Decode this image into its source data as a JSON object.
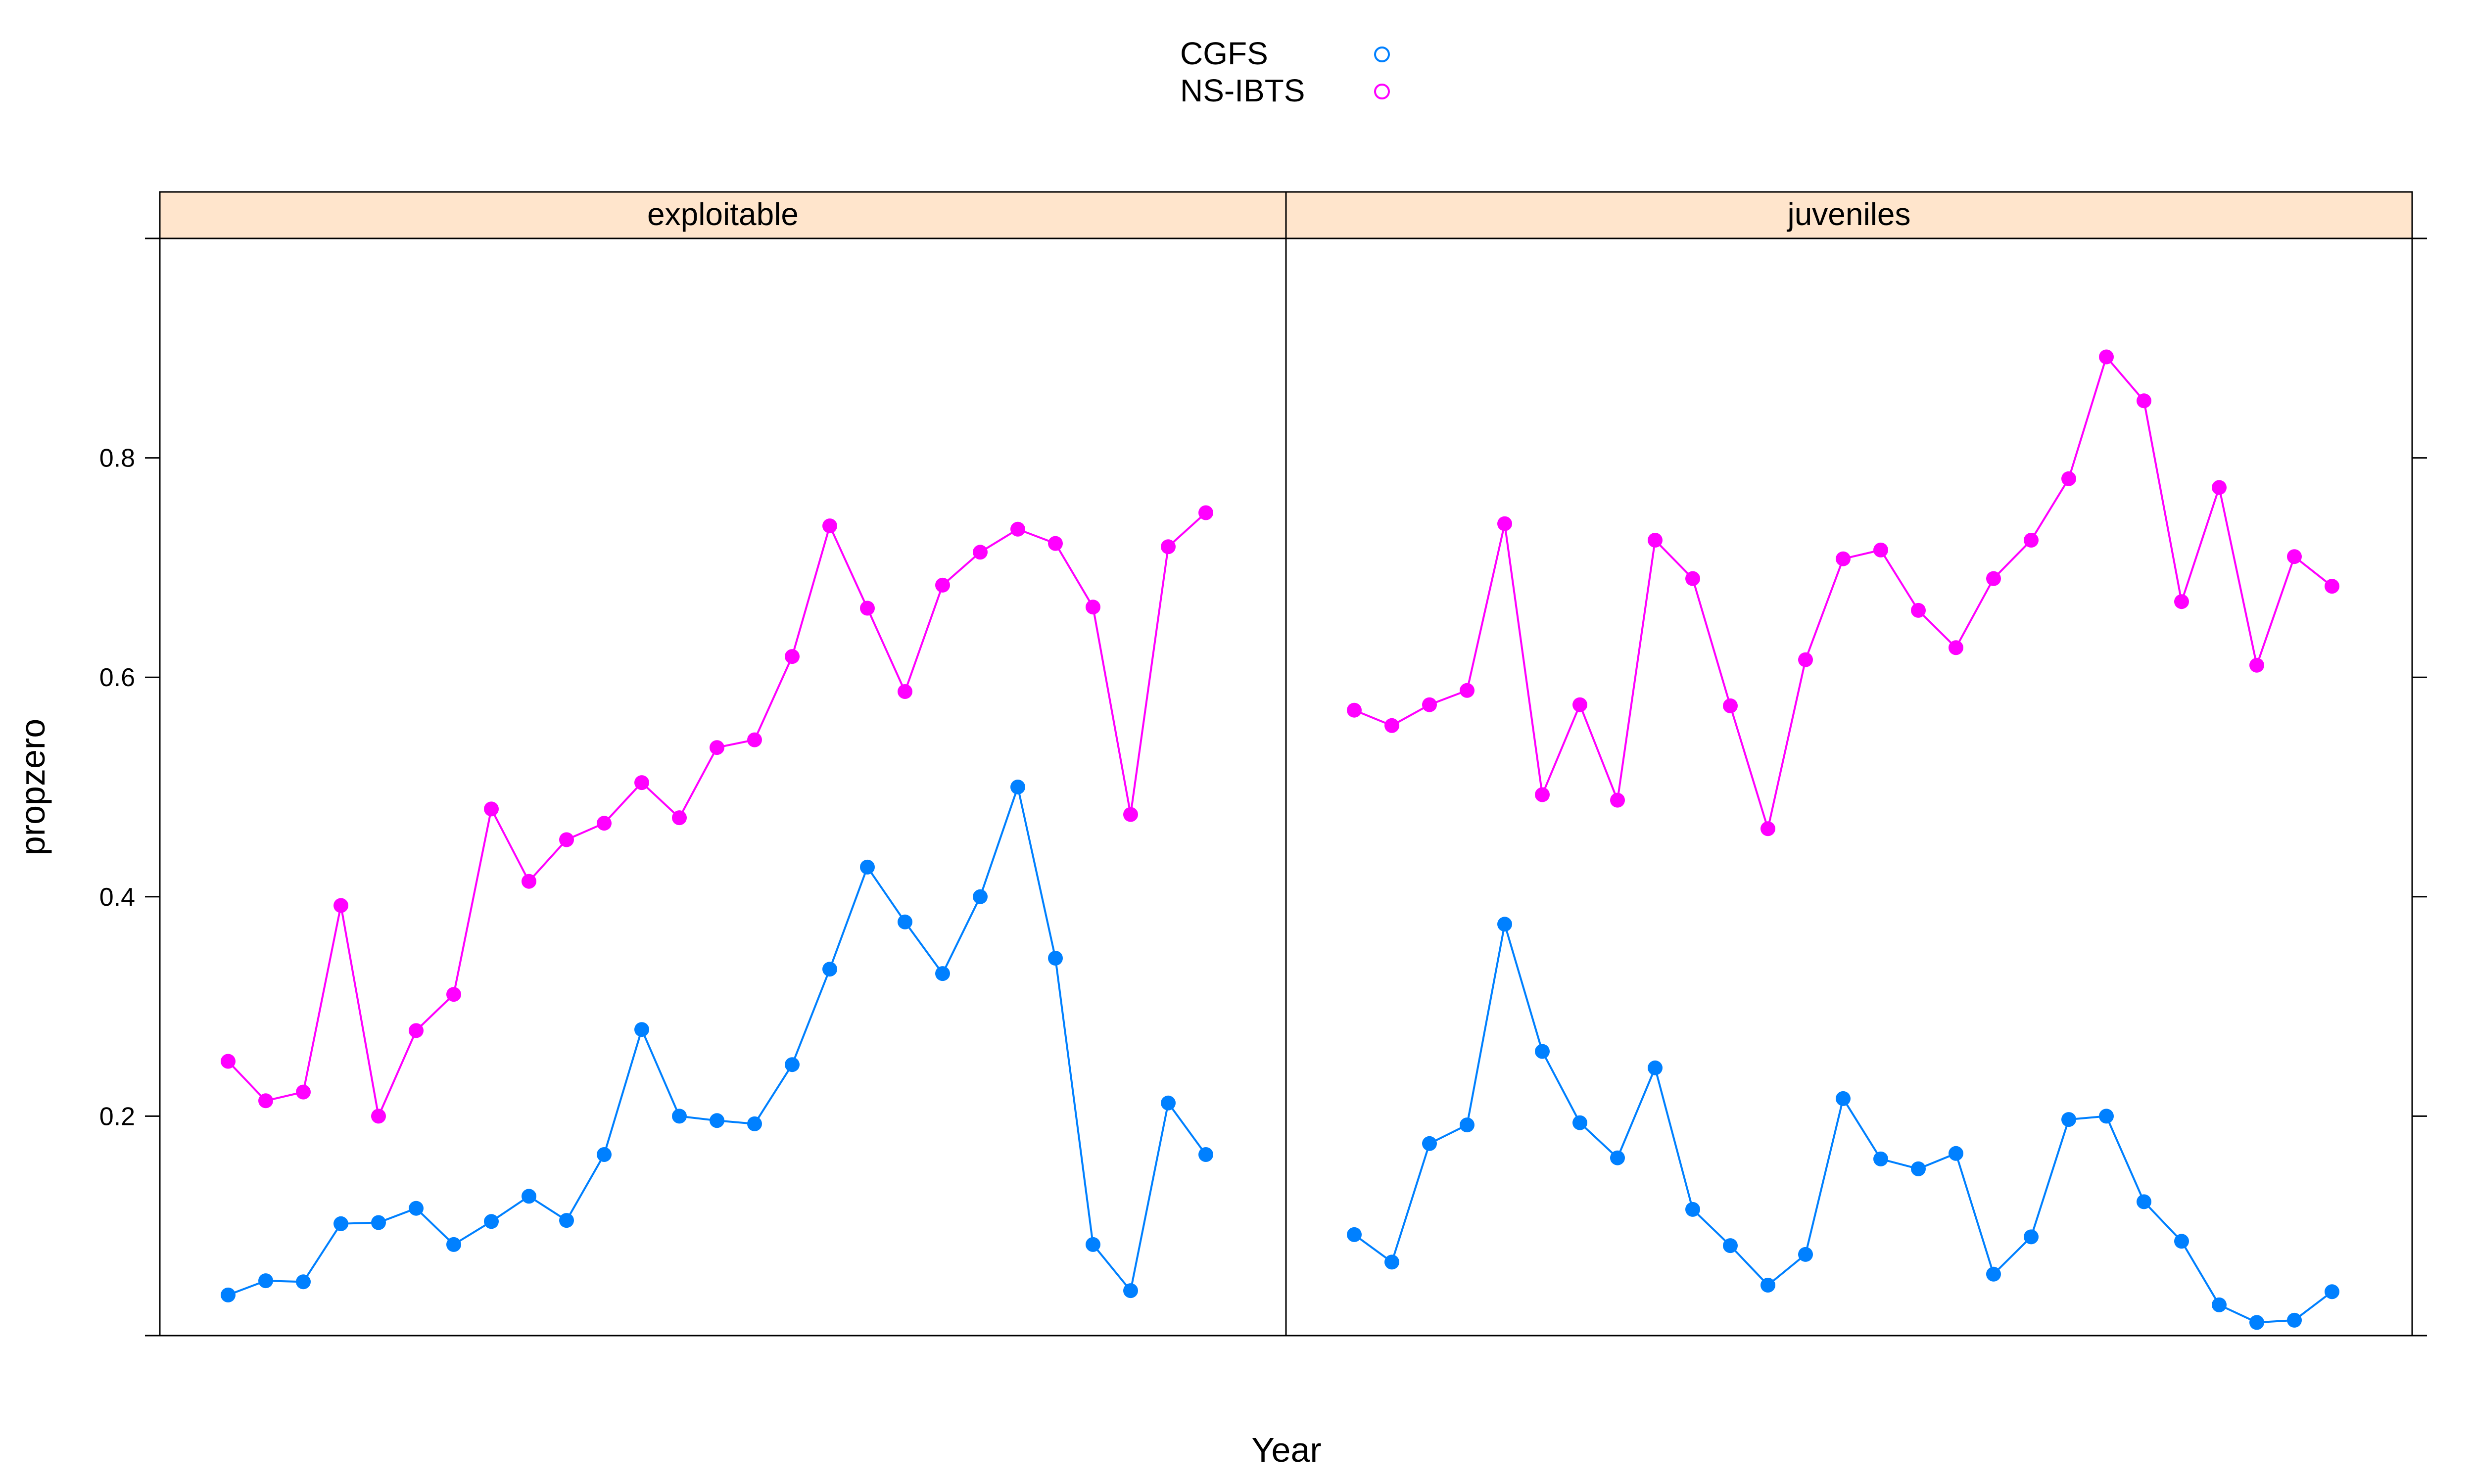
{
  "chart_data": {
    "type": "line",
    "xlabel": "Year",
    "ylabel": "propzero",
    "yticks": [
      0.2,
      0.4,
      0.6,
      0.8
    ],
    "ylim": [
      0.0,
      1.0
    ],
    "x_ticks_shown": false,
    "grid": false,
    "legend_position": "top-center",
    "strip_color": "#ffe5cc",
    "legend": [
      {
        "label": "CGFS",
        "color": "#0080ff"
      },
      {
        "label": "NS-IBTS",
        "color": "#ff00ff"
      }
    ],
    "panels": [
      {
        "title": "exploitable",
        "series": [
          {
            "name": "CGFS",
            "color": "#0080ff",
            "values": [
              0.037,
              0.05,
              0.049,
              0.102,
              0.103,
              0.116,
              0.083,
              0.104,
              0.127,
              0.105,
              0.165,
              0.279,
              0.2,
              0.196,
              0.193,
              0.247,
              0.334,
              0.427,
              0.377,
              0.33,
              0.4,
              0.5,
              0.344,
              0.083,
              0.041,
              0.212,
              0.165
            ]
          },
          {
            "name": "NS-IBTS",
            "color": "#ff00ff",
            "values": [
              0.25,
              0.214,
              0.222,
              0.392,
              0.2,
              0.278,
              0.311,
              0.48,
              0.414,
              0.452,
              0.467,
              0.504,
              0.472,
              0.536,
              0.543,
              0.619,
              0.738,
              0.663,
              0.587,
              0.684,
              0.714,
              0.735,
              0.722,
              0.664,
              0.475,
              0.719,
              0.75
            ]
          }
        ]
      },
      {
        "title": "juveniles",
        "series": [
          {
            "name": "CGFS",
            "color": "#0080ff",
            "values": [
              0.092,
              0.067,
              0.175,
              0.192,
              0.375,
              0.259,
              0.194,
              0.162,
              0.244,
              0.115,
              0.082,
              0.046,
              0.074,
              0.216,
              0.161,
              0.152,
              0.166,
              0.056,
              0.09,
              0.197,
              0.2,
              0.122,
              0.086,
              0.028,
              0.012,
              0.014,
              0.04
            ]
          },
          {
            "name": "NS-IBTS",
            "color": "#ff00ff",
            "values": [
              0.57,
              0.556,
              0.575,
              0.588,
              0.74,
              0.493,
              0.575,
              0.488,
              0.725,
              0.69,
              0.574,
              0.462,
              0.616,
              0.708,
              0.716,
              0.661,
              0.627,
              0.69,
              0.725,
              0.781,
              0.892,
              0.852,
              0.669,
              0.773,
              0.611,
              0.71,
              0.683
            ]
          }
        ]
      }
    ]
  }
}
